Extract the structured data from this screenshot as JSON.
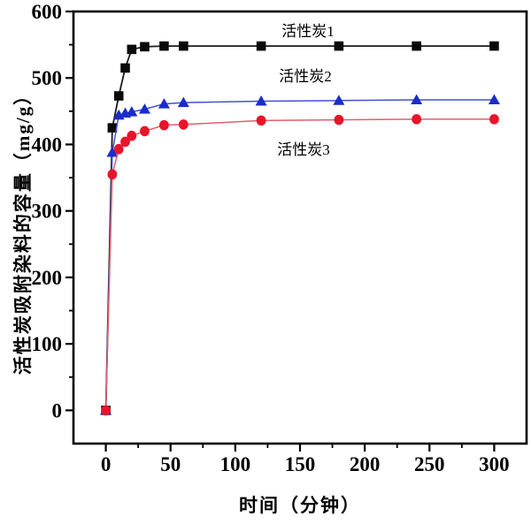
{
  "figure": {
    "background": "#ffffff"
  },
  "chart_data": {
    "type": "line",
    "title": "",
    "xlabel": "时间（分钟）",
    "ylabel": "活性炭吸附染料的容量（mg/g）",
    "xlim": [
      -25,
      325
    ],
    "ylim": [
      -50,
      600
    ],
    "grid": false,
    "legend_position": "inline-annotations",
    "x_ticks": [
      0,
      50,
      100,
      150,
      200,
      250,
      300
    ],
    "x_minor_ticks": [
      25,
      75,
      125,
      175,
      225,
      275
    ],
    "y_ticks": [
      0,
      100,
      200,
      300,
      400,
      500,
      600
    ],
    "y_minor_ticks": [
      50,
      150,
      250,
      350,
      450,
      550
    ],
    "x": [
      0,
      5,
      10,
      15,
      20,
      30,
      45,
      60,
      120,
      180,
      240,
      300
    ],
    "series": [
      {
        "name": "活性炭1",
        "marker": "square",
        "marker_color": "#0a0a0a",
        "line_color": "#1a1a1a",
        "line_width": 1.8,
        "values": [
          0,
          425,
          473,
          515,
          543,
          547,
          548,
          548,
          548,
          548,
          548,
          548
        ]
      },
      {
        "name": "活性炭2",
        "marker": "triangle",
        "marker_color": "#1c2cc8",
        "line_color": "#4050d5",
        "line_width": 1.5,
        "values": [
          0,
          388,
          444,
          447,
          449,
          453,
          461,
          463,
          465,
          466,
          467,
          467
        ]
      },
      {
        "name": "活性炭3",
        "marker": "circle",
        "marker_color": "#e8142a",
        "line_color": "#e0606c",
        "line_width": 1.5,
        "values": [
          0,
          355,
          393,
          404,
          413,
          420,
          429,
          430,
          436,
          437,
          438,
          438
        ]
      }
    ],
    "annotations": [
      {
        "text": "活性炭1",
        "x": 156,
        "y": 576
      },
      {
        "text": "活性炭2",
        "x": 154,
        "y": 508
      },
      {
        "text": "活性炭3",
        "x": 153,
        "y": 398
      }
    ]
  }
}
